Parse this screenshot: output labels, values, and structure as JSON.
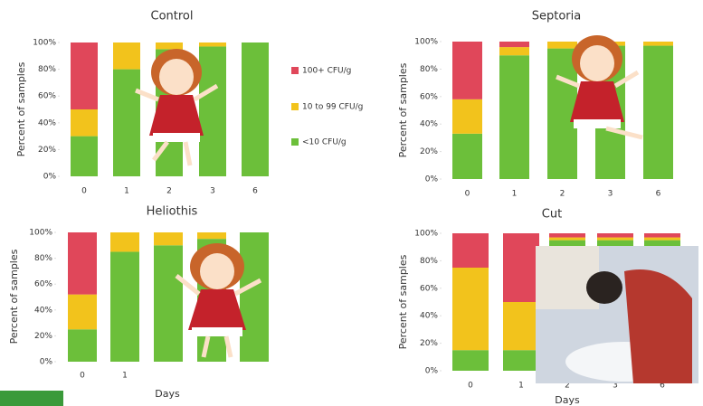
{
  "chart_data": [
    {
      "type": "stacked_bar",
      "title": "Control",
      "ylabel": "Percent of samples",
      "categories": [
        "0",
        "1",
        "2",
        "3",
        "6"
      ],
      "series": [
        {
          "name": "<10 CFU/g",
          "color": "#6cbf3a",
          "values": [
            30,
            80,
            95,
            97,
            100
          ]
        },
        {
          "name": "10 to 99 CFU/g",
          "color": "#f2c31c",
          "values": [
            20,
            20,
            5,
            3,
            0
          ]
        },
        {
          "name": "100+ CFU/g",
          "color": "#e0475a",
          "values": [
            50,
            0,
            0,
            0,
            0
          ]
        }
      ],
      "ylim": [
        0,
        100
      ],
      "yticks": [
        {
          "value": 0,
          "label": "0%"
        },
        {
          "value": 20,
          "label": "20%"
        },
        {
          "value": 40,
          "label": "40%"
        },
        {
          "value": 60,
          "label": "60%"
        },
        {
          "value": 80,
          "label": "80%"
        },
        {
          "value": 100,
          "label": "100%"
        }
      ],
      "legend": "right"
    },
    {
      "type": "stacked_bar",
      "title": "Septoria",
      "ylabel": "Percent of samples",
      "categories": [
        "0",
        "1",
        "2",
        "3",
        "6"
      ],
      "series": [
        {
          "color": "#6cbf3a",
          "values": [
            33,
            90,
            95,
            97,
            97
          ]
        },
        {
          "color": "#f2c31c",
          "values": [
            25,
            6,
            5,
            3,
            3
          ]
        },
        {
          "color": "#e0475a",
          "values": [
            42,
            4,
            0,
            0,
            0
          ]
        }
      ],
      "ylim": [
        0,
        100
      ],
      "yticks": [
        {
          "value": 0,
          "label": "0%"
        },
        {
          "value": 20,
          "label": "20%"
        },
        {
          "value": 40,
          "label": "40%"
        },
        {
          "value": 60,
          "label": "60%"
        },
        {
          "value": 80,
          "label": "80%"
        },
        {
          "value": 100,
          "label": "100%"
        }
      ]
    },
    {
      "type": "stacked_bar",
      "title": "Heliothis",
      "ylabel": "Percent of samples",
      "xlabel": "Days",
      "categories": [
        "0",
        "1",
        null,
        null,
        null
      ],
      "series": [
        {
          "color": "#6cbf3a",
          "values": [
            25,
            85,
            90,
            95,
            100
          ]
        },
        {
          "color": "#f2c31c",
          "values": [
            27,
            15,
            10,
            5,
            0
          ]
        },
        {
          "color": "#e0475a",
          "values": [
            48,
            0,
            0,
            0,
            0
          ]
        }
      ],
      "ylim": [
        0,
        100
      ],
      "yticks": [
        {
          "value": 0,
          "label": "0%"
        },
        {
          "value": 20,
          "label": "20%"
        },
        {
          "value": 40,
          "label": "40%"
        },
        {
          "value": 60,
          "label": "60%"
        },
        {
          "value": 80,
          "label": "80%"
        },
        {
          "value": 100,
          "label": "100%"
        }
      ]
    },
    {
      "type": "stacked_bar",
      "title": "Cut",
      "ylabel": "Percent of samples",
      "xlabel": "Days",
      "categories": [
        "0",
        "1",
        "2",
        "3",
        "6"
      ],
      "series": [
        {
          "color": "#6cbf3a",
          "values": [
            15,
            15,
            95,
            95,
            95
          ]
        },
        {
          "color": "#f2c31c",
          "values": [
            60,
            35,
            2,
            2,
            2
          ]
        },
        {
          "color": "#e0475a",
          "values": [
            25,
            50,
            3,
            3,
            3
          ]
        }
      ],
      "ylim": [
        0,
        100
      ],
      "yticks": [
        {
          "value": 0,
          "label": "0%"
        },
        {
          "value": 20,
          "label": "20%"
        },
        {
          "value": 40,
          "label": "40%"
        },
        {
          "value": 60,
          "label": "60%"
        },
        {
          "value": 80,
          "label": "80%"
        },
        {
          "value": 100,
          "label": "100%"
        }
      ]
    }
  ]
}
